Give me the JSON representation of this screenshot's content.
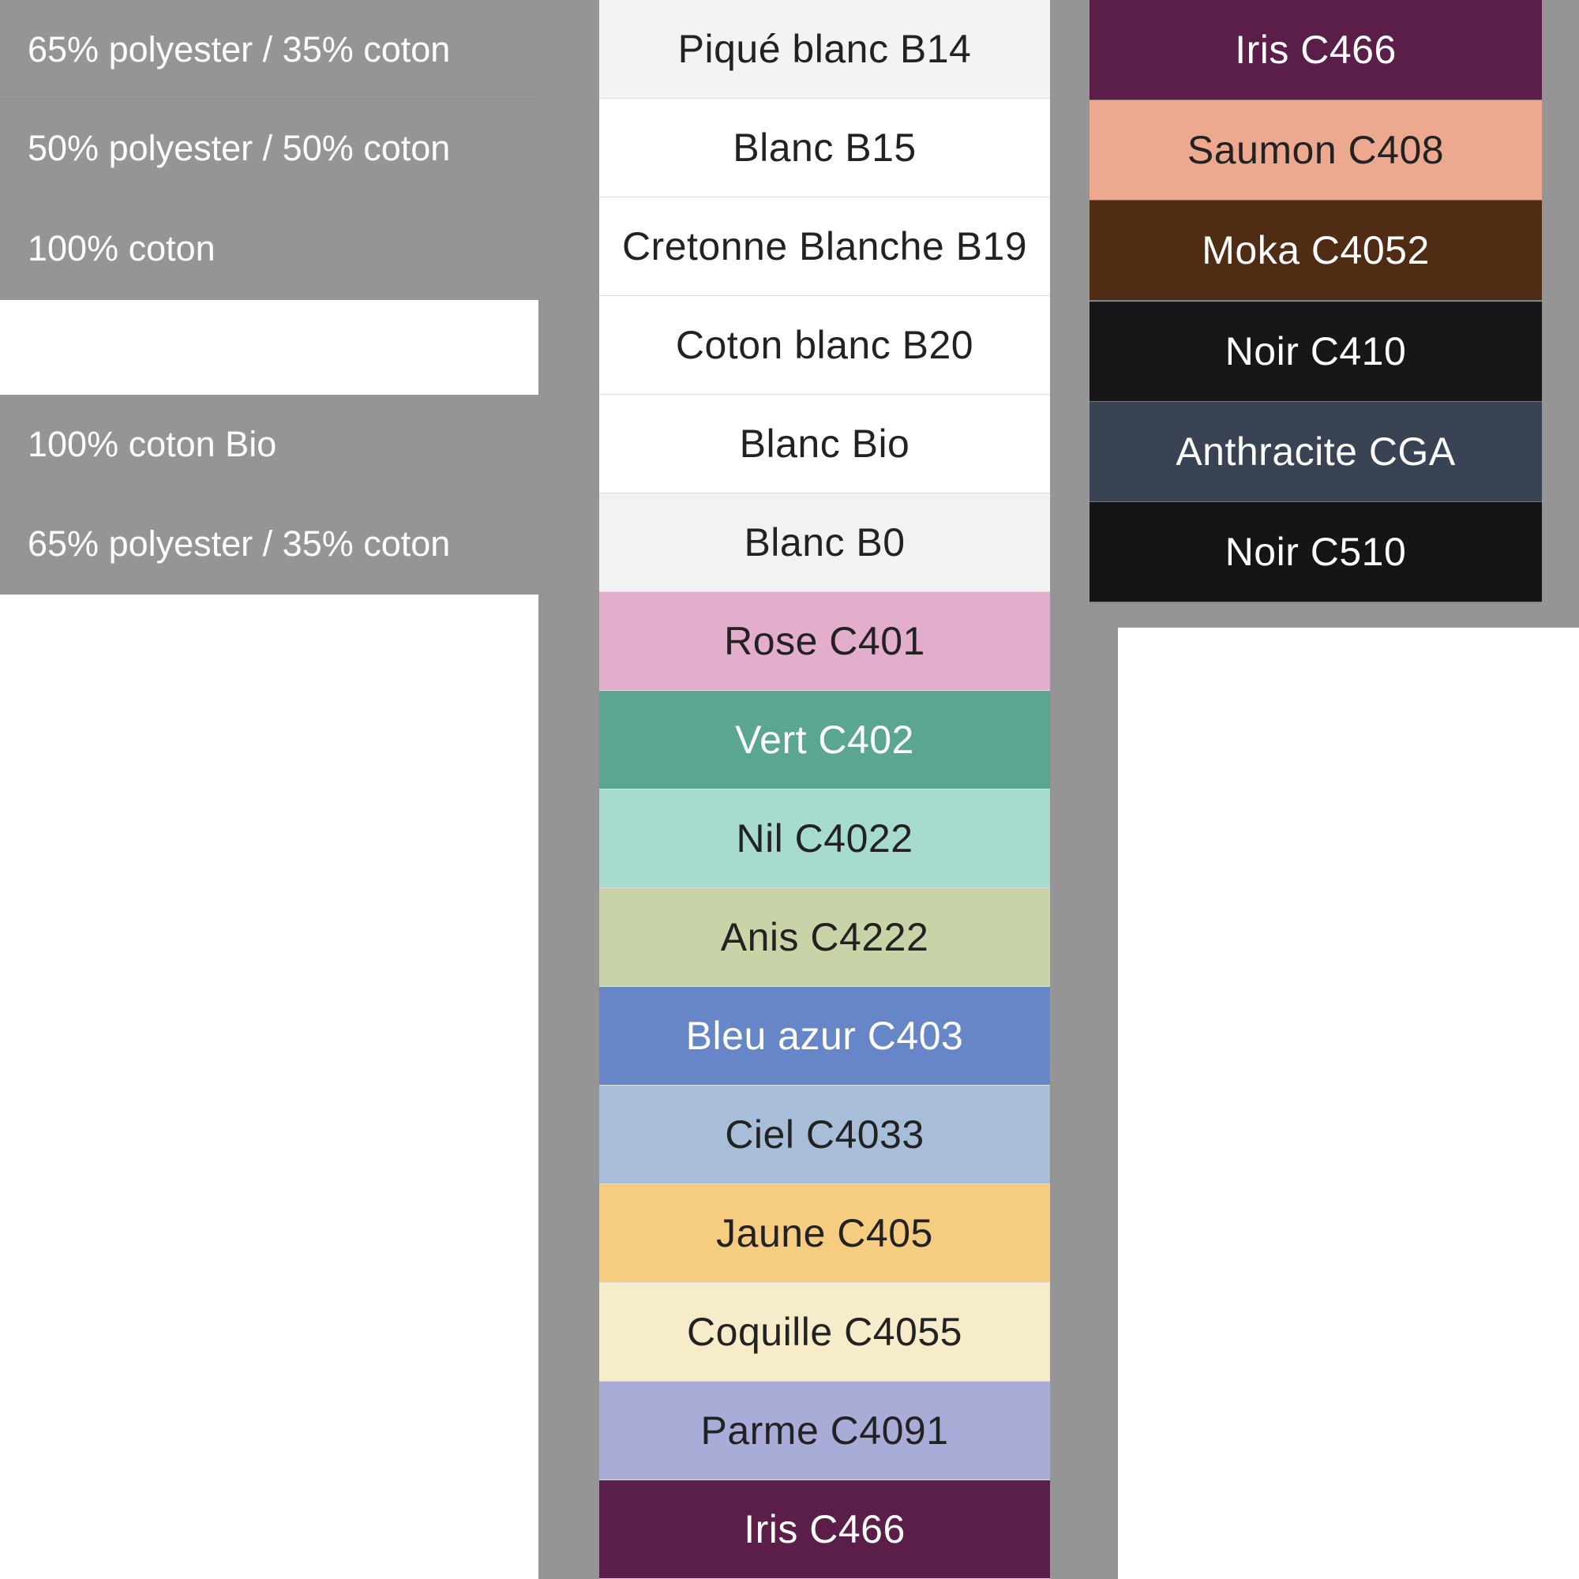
{
  "compositions": [
    {
      "label": "65% polyester / 35% coton"
    },
    {
      "label": "50% polyester / 50% coton"
    },
    {
      "label": "100% coton"
    },
    {
      "label": "100% coton Bio"
    },
    {
      "label": "65% polyester / 35% coton"
    }
  ],
  "middle_swatches": [
    {
      "label": "Piqué blanc B14",
      "color": "#f3f3f3",
      "text": "#222222"
    },
    {
      "label": "Blanc B15",
      "color": "#ffffff",
      "text": "#222222"
    },
    {
      "label": "Cretonne Blanche B19",
      "color": "#ffffff",
      "text": "#222222"
    },
    {
      "label": "Coton blanc B20",
      "color": "#ffffff",
      "text": "#222222"
    },
    {
      "label": "Blanc Bio",
      "color": "#ffffff",
      "text": "#222222"
    },
    {
      "label": "Blanc B0",
      "color": "#f1f3f2",
      "text": "#222222"
    },
    {
      "label": "Rose C401",
      "color": "#e3aecb",
      "text": "#222222"
    },
    {
      "label": "Vert C402",
      "color": "#5ba593",
      "text": "#ffffff"
    },
    {
      "label": "Nil C4022",
      "color": "#a7dbcf",
      "text": "#222222"
    },
    {
      "label": "Anis C4222",
      "color": "#c9d3a8",
      "text": "#222222"
    },
    {
      "label": "Bleu azur C403",
      "color": "#6686c7",
      "text": "#ffffff"
    },
    {
      "label": "Ciel C4033",
      "color": "#a8bdd8",
      "text": "#222222"
    },
    {
      "label": "Jaune C405",
      "color": "#f6cc80",
      "text": "#222222"
    },
    {
      "label": "Coquille C4055",
      "color": "#f6ecca",
      "text": "#222222"
    },
    {
      "label": "Parme C4091",
      "color": "#aaacd8",
      "text": "#222222"
    },
    {
      "label": "Iris C466",
      "color": "#5a1e48",
      "text": "#ffffff"
    }
  ],
  "right_swatches": [
    {
      "label": "Iris C466",
      "color": "#5a1e48",
      "text": "#ffffff"
    },
    {
      "label": "Saumon C408",
      "color": "#eda98f",
      "text": "#222222"
    },
    {
      "label": "Moka C4052",
      "color": "#502c14",
      "text": "#ffffff"
    },
    {
      "label": "Noir C410",
      "color": "#17171a",
      "text": "#ffffff"
    },
    {
      "label": "Anthracite CGA",
      "color": "#3a4353",
      "text": "#ffffff"
    },
    {
      "label": "Noir C510",
      "color": "#151517",
      "text": "#ffffff"
    }
  ]
}
